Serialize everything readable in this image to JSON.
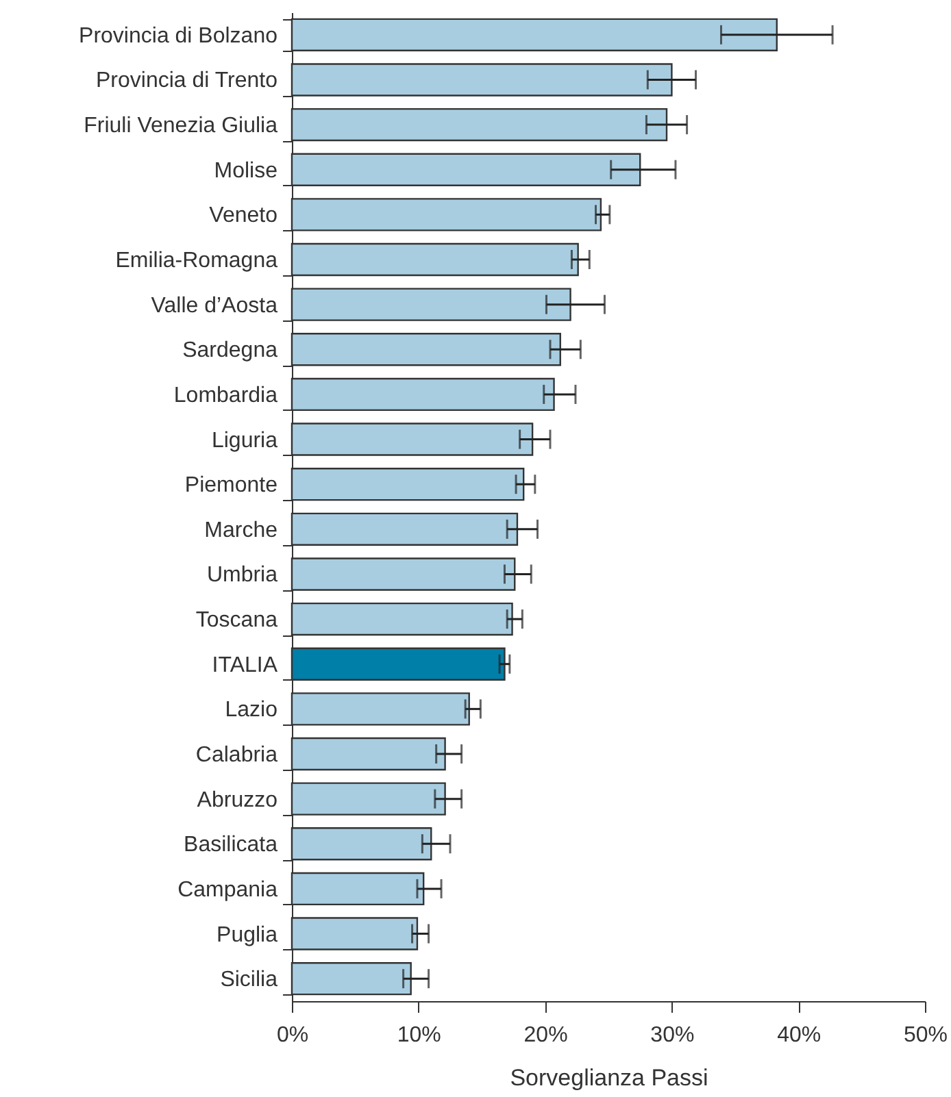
{
  "chart_data": {
    "type": "bar",
    "orientation": "horizontal",
    "xlabel": "Sorveglianza Passi",
    "categories": [
      "Provincia di Bolzano",
      "Provincia di Trento",
      "Friuli Venezia Giulia",
      "Molise",
      "Veneto",
      "Emilia-Romagna",
      "Valle d’Aosta",
      "Sardegna",
      "Lombardia",
      "Liguria",
      "Piemonte",
      "Marche",
      "Umbria",
      "Toscana",
      "ITALIA",
      "Lazio",
      "Calabria",
      "Abruzzo",
      "Basilicata",
      "Campania",
      "Puglia",
      "Sicilia"
    ],
    "values": [
      38.3,
      30.0,
      29.6,
      27.5,
      24.4,
      22.6,
      22.0,
      21.2,
      20.7,
      19.0,
      18.3,
      17.8,
      17.6,
      17.4,
      16.8,
      14.0,
      12.1,
      12.1,
      11.0,
      10.4,
      9.9,
      9.4
    ],
    "errors": [
      4.4,
      1.9,
      1.6,
      [
        25.2,
        30.3
      ],
      [
        24.0,
        25.1
      ],
      [
        22.1,
        23.5
      ],
      [
        20.1,
        24.7
      ],
      [
        20.4,
        22.8
      ],
      [
        19.9,
        22.4
      ],
      [
        18.0,
        20.4
      ],
      [
        17.7,
        19.2
      ],
      [
        17.0,
        19.4
      ],
      [
        16.8,
        18.9
      ],
      [
        17.0,
        18.2
      ],
      0.4,
      [
        13.7,
        14.9
      ],
      [
        11.4,
        13.4
      ],
      [
        11.3,
        13.4
      ],
      [
        10.3,
        12.5
      ],
      [
        9.9,
        11.8
      ],
      [
        9.5,
        10.8
      ],
      [
        8.8,
        10.8
      ]
    ],
    "colors": [
      "#a8cde0",
      "#a8cde0",
      "#a8cde0",
      "#a8cde0",
      "#a8cde0",
      "#a8cde0",
      "#a8cde0",
      "#a8cde0",
      "#a8cde0",
      "#a8cde0",
      "#a8cde0",
      "#a8cde0",
      "#a8cde0",
      "#a8cde0",
      "#007fa8",
      "#a8cde0",
      "#a8cde0",
      "#a8cde0",
      "#a8cde0",
      "#a8cde0",
      "#a8cde0",
      "#a8cde0"
    ],
    "xlim": [
      0,
      50
    ],
    "xticks": [
      {
        "value": 0,
        "label": "0%"
      },
      {
        "value": 10,
        "label": "10%"
      },
      {
        "value": 20,
        "label": "20%"
      },
      {
        "value": 30,
        "label": "30%"
      },
      {
        "value": 40,
        "label": "40%"
      },
      {
        "value": 50,
        "label": "50%"
      }
    ]
  }
}
